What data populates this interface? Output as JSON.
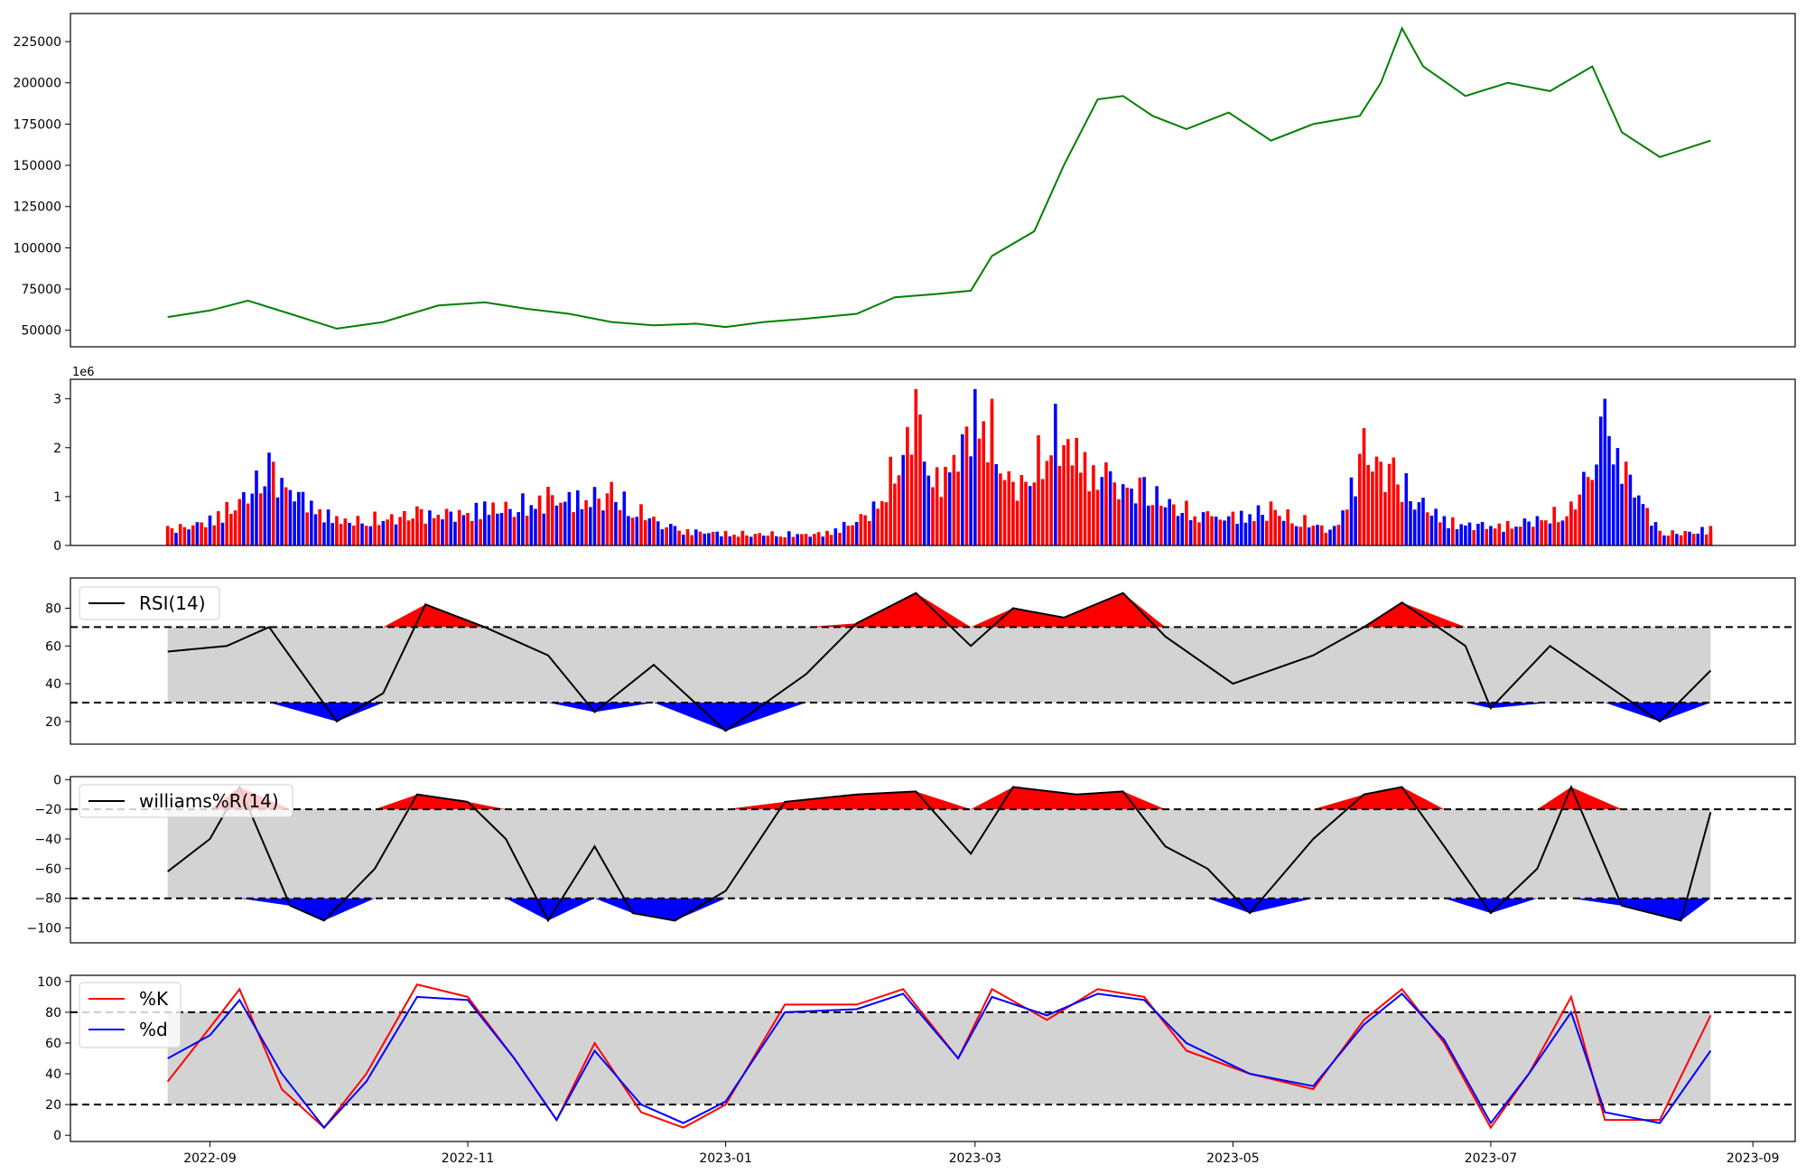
{
  "chart_data": [
    {
      "type": "line",
      "panel": "price",
      "color": "#008000",
      "yticks": [
        50000,
        75000,
        100000,
        125000,
        150000,
        175000,
        200000,
        225000
      ],
      "ylim": [
        40000,
        242000
      ],
      "x": [
        "2022-08-22",
        "2022-09-01",
        "2022-09-10",
        "2022-09-20",
        "2022-10-01",
        "2022-10-12",
        "2022-10-25",
        "2022-11-05",
        "2022-11-15",
        "2022-11-25",
        "2022-12-05",
        "2022-12-15",
        "2022-12-25",
        "2023-01-01",
        "2023-01-10",
        "2023-01-20",
        "2023-02-01",
        "2023-02-10",
        "2023-02-20",
        "2023-02-28",
        "2023-03-05",
        "2023-03-15",
        "2023-03-22",
        "2023-03-30",
        "2023-04-05",
        "2023-04-12",
        "2023-04-20",
        "2023-04-30",
        "2023-05-10",
        "2023-05-20",
        "2023-05-31",
        "2023-06-05",
        "2023-06-10",
        "2023-06-15",
        "2023-06-25",
        "2023-07-05",
        "2023-07-15",
        "2023-07-25",
        "2023-08-01",
        "2023-08-10",
        "2023-08-22"
      ],
      "values": [
        58000,
        62000,
        68000,
        60000,
        51000,
        55000,
        65000,
        67000,
        63000,
        60000,
        55000,
        53000,
        54000,
        52000,
        55000,
        57000,
        60000,
        70000,
        72000,
        74000,
        95000,
        110000,
        150000,
        190000,
        192000,
        180000,
        172000,
        182000,
        165000,
        175000,
        180000,
        200000,
        233000,
        210000,
        192000,
        200000,
        195000,
        210000,
        170000,
        155000,
        165000
      ]
    },
    {
      "type": "bar",
      "panel": "volume",
      "scale_label": "1e6",
      "yticks": [
        0,
        1,
        2,
        3
      ],
      "ylim": [
        0,
        3.4
      ],
      "up_color": "#ff0000",
      "down_color": "#0000ff",
      "x": [
        "2022-08-22",
        "2022-09-03",
        "2022-09-15",
        "2022-10-01",
        "2022-10-20",
        "2022-11-05",
        "2022-11-20",
        "2022-12-05",
        "2022-12-20",
        "2023-01-05",
        "2023-01-25",
        "2023-02-05",
        "2023-02-15",
        "2023-02-20",
        "2023-03-01",
        "2023-03-05",
        "2023-03-10",
        "2023-03-20",
        "2023-03-25",
        "2023-04-01",
        "2023-04-10",
        "2023-04-25",
        "2023-05-10",
        "2023-05-25",
        "2023-06-01",
        "2023-06-08",
        "2023-06-20",
        "2023-07-05",
        "2023-07-20",
        "2023-07-28",
        "2023-08-10",
        "2023-08-22"
      ],
      "values": [
        0.4,
        0.7,
        1.9,
        0.6,
        0.8,
        0.9,
        1.2,
        1.3,
        0.4,
        0.3,
        0.3,
        0.9,
        3.2,
        1.6,
        3.2,
        3.0,
        1.3,
        2.9,
        2.2,
        1.7,
        1.4,
        0.7,
        0.9,
        0.4,
        2.4,
        1.8,
        0.6,
        0.5,
        0.9,
        3.0,
        0.3,
        0.4
      ]
    },
    {
      "type": "line",
      "panel": "rsi",
      "legend": [
        "RSI(14)"
      ],
      "yticks": [
        20,
        40,
        60,
        80
      ],
      "ylim": [
        8,
        96
      ],
      "thresholds": [
        30,
        70
      ],
      "x": [
        "2022-08-22",
        "2022-09-05",
        "2022-09-15",
        "2022-10-01",
        "2022-10-12",
        "2022-10-22",
        "2022-11-05",
        "2022-11-20",
        "2022-12-01",
        "2022-12-15",
        "2023-01-01",
        "2023-01-20",
        "2023-02-01",
        "2023-02-15",
        "2023-02-28",
        "2023-03-10",
        "2023-03-22",
        "2023-04-05",
        "2023-04-15",
        "2023-05-01",
        "2023-05-20",
        "2023-06-01",
        "2023-06-10",
        "2023-06-25",
        "2023-07-01",
        "2023-07-15",
        "2023-07-28",
        "2023-08-10",
        "2023-08-22"
      ],
      "values": [
        57,
        60,
        70,
        20,
        35,
        82,
        70,
        55,
        25,
        50,
        15,
        45,
        72,
        88,
        60,
        80,
        75,
        88,
        65,
        40,
        55,
        70,
        83,
        60,
        27,
        60,
        40,
        20,
        47
      ]
    },
    {
      "type": "line",
      "panel": "williams",
      "legend": [
        "williams%R(14)"
      ],
      "yticks": [
        0,
        -20,
        -40,
        -60,
        -80,
        -100
      ],
      "ylim": [
        -110,
        2
      ],
      "thresholds": [
        -20,
        -80
      ],
      "x": [
        "2022-08-22",
        "2022-09-01",
        "2022-09-08",
        "2022-09-20",
        "2022-09-28",
        "2022-10-10",
        "2022-10-20",
        "2022-11-01",
        "2022-11-10",
        "2022-11-20",
        "2022-12-01",
        "2022-12-10",
        "2022-12-20",
        "2023-01-01",
        "2023-01-15",
        "2023-02-01",
        "2023-02-15",
        "2023-02-28",
        "2023-03-10",
        "2023-03-25",
        "2023-04-05",
        "2023-04-15",
        "2023-04-25",
        "2023-05-05",
        "2023-05-20",
        "2023-06-01",
        "2023-06-10",
        "2023-06-20",
        "2023-07-01",
        "2023-07-12",
        "2023-07-20",
        "2023-08-01",
        "2023-08-15",
        "2023-08-22"
      ],
      "values": [
        -62,
        -40,
        -5,
        -85,
        -95,
        -60,
        -10,
        -15,
        -40,
        -95,
        -45,
        -90,
        -95,
        -75,
        -15,
        -10,
        -8,
        -50,
        -5,
        -10,
        -8,
        -45,
        -60,
        -90,
        -40,
        -10,
        -5,
        -45,
        -90,
        -60,
        -5,
        -85,
        -95,
        -22
      ]
    },
    {
      "type": "line",
      "panel": "stochastic",
      "legend": [
        "%K",
        "%d"
      ],
      "yticks": [
        0,
        20,
        40,
        60,
        80,
        100
      ],
      "ylim": [
        -4,
        104
      ],
      "thresholds": [
        20,
        80
      ],
      "x": [
        "2022-08-22",
        "2022-09-01",
        "2022-09-08",
        "2022-09-18",
        "2022-09-28",
        "2022-10-08",
        "2022-10-20",
        "2022-11-01",
        "2022-11-12",
        "2022-11-22",
        "2022-12-01",
        "2022-12-12",
        "2022-12-22",
        "2023-01-01",
        "2023-01-15",
        "2023-02-01",
        "2023-02-12",
        "2023-02-25",
        "2023-03-05",
        "2023-03-18",
        "2023-03-30",
        "2023-04-10",
        "2023-04-20",
        "2023-05-05",
        "2023-05-20",
        "2023-06-01",
        "2023-06-10",
        "2023-06-20",
        "2023-07-01",
        "2023-07-10",
        "2023-07-20",
        "2023-07-28",
        "2023-08-10",
        "2023-08-22"
      ],
      "series": [
        {
          "name": "%K",
          "color": "#ff0000",
          "values": [
            35,
            70,
            95,
            30,
            5,
            40,
            98,
            90,
            50,
            10,
            60,
            15,
            5,
            20,
            85,
            85,
            95,
            50,
            95,
            75,
            95,
            90,
            55,
            40,
            30,
            75,
            95,
            60,
            5,
            40,
            90,
            10,
            10,
            78
          ]
        },
        {
          "name": "%d",
          "color": "#0000ff",
          "values": [
            50,
            65,
            88,
            40,
            5,
            35,
            90,
            88,
            50,
            10,
            55,
            20,
            8,
            22,
            80,
            82,
            92,
            50,
            90,
            78,
            92,
            88,
            60,
            40,
            32,
            72,
            92,
            62,
            8,
            40,
            80,
            15,
            8,
            55
          ]
        }
      ]
    }
  ],
  "x_axis": {
    "xlim": [
      "2022-07-30",
      "2023-09-11"
    ],
    "ticks": [
      "2022-09-01",
      "2022-11-01",
      "2023-01-01",
      "2023-03-01",
      "2023-05-01",
      "2023-07-01",
      "2023-09-01"
    ],
    "tick_labels": [
      "2022-09",
      "2022-11",
      "2023-01",
      "2023-03",
      "2023-05",
      "2023-07",
      "2023-09"
    ]
  }
}
